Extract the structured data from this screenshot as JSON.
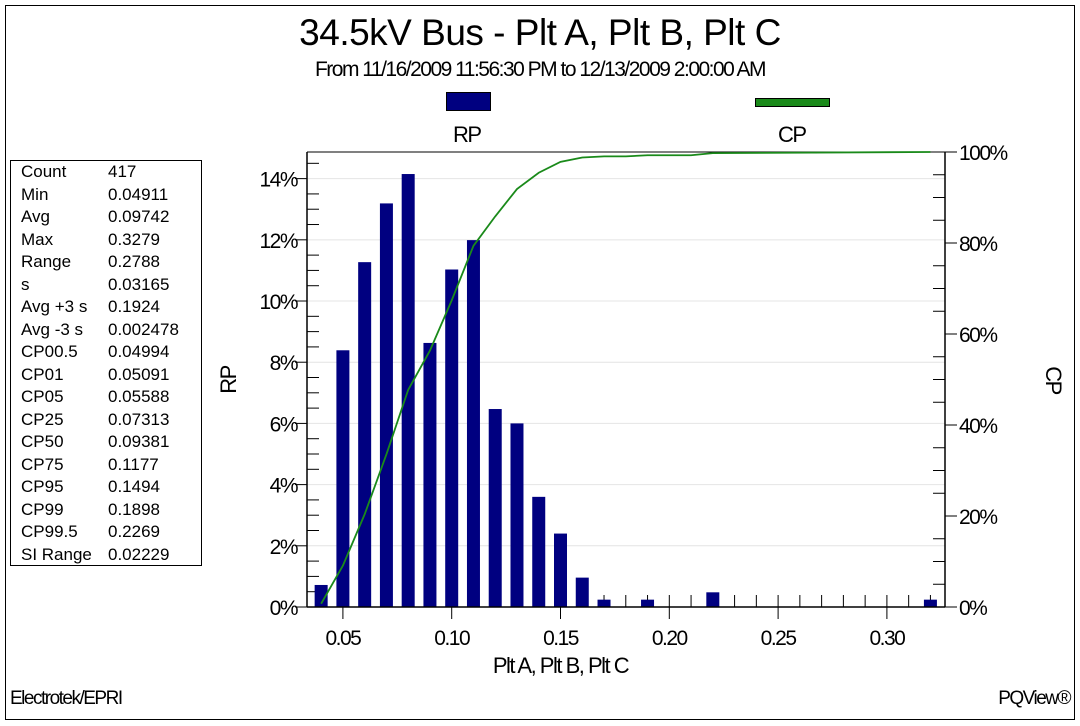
{
  "chart_data": {
    "type": "bar",
    "title": "34.5kV Bus - Plt A, Plt B, Plt C",
    "subtitle": "From 11/16/2009 11:56:30 PM to 12/13/2009 2:00:00 AM",
    "xlabel": "Plt A, Plt B, Plt C",
    "ylabel": "RP",
    "y2label": "CP",
    "xlim": [
      0.0335,
      0.3267
    ],
    "ylim": [
      0,
      14.87
    ],
    "y2lim": [
      0,
      100
    ],
    "x_ticks": [
      "0.05",
      "0.10",
      "0.15",
      "0.20",
      "0.25",
      "0.30"
    ],
    "y_ticks": [
      "0%",
      "2%",
      "4%",
      "6%",
      "8%",
      "10%",
      "12%",
      "14%"
    ],
    "y2_ticks": [
      "0%",
      "20%",
      "40%",
      "60%",
      "80%",
      "100%"
    ],
    "legend": [
      {
        "name": "RP",
        "color": "#000080"
      },
      {
        "name": "CP",
        "color": "#1a8a1a"
      }
    ],
    "legend_placement": "top",
    "grid": true,
    "series": [
      {
        "name": "RP",
        "type": "bar",
        "x": [
          0.04,
          0.05,
          0.06,
          0.07,
          0.08,
          0.09,
          0.1,
          0.11,
          0.12,
          0.13,
          0.14,
          0.15,
          0.16,
          0.17,
          0.19,
          0.22,
          0.32
        ],
        "values": [
          0.72,
          8.39,
          11.27,
          13.19,
          14.15,
          8.63,
          11.03,
          11.99,
          6.47,
          6.0,
          3.6,
          2.4,
          0.96,
          0.24,
          0.24,
          0.48,
          0.24
        ]
      },
      {
        "name": "CP",
        "type": "line",
        "x": [
          0.04,
          0.05,
          0.06,
          0.07,
          0.08,
          0.09,
          0.1,
          0.11,
          0.12,
          0.13,
          0.14,
          0.15,
          0.16,
          0.17,
          0.18,
          0.19,
          0.2,
          0.21,
          0.22,
          0.32
        ],
        "values": [
          0.72,
          9.11,
          20.38,
          33.57,
          47.72,
          56.35,
          67.39,
          79.38,
          85.85,
          91.85,
          95.44,
          97.84,
          98.8,
          99.04,
          99.04,
          99.28,
          99.28,
          99.28,
          99.76,
          100
        ]
      }
    ]
  },
  "stats": [
    [
      "Count",
      "417"
    ],
    [
      "Min",
      "0.04911"
    ],
    [
      "Avg",
      "0.09742"
    ],
    [
      "Max",
      "0.3279"
    ],
    [
      "Range",
      "0.2788"
    ],
    [
      "s",
      "0.03165"
    ],
    [
      "Avg +3 s",
      "0.1924"
    ],
    [
      "Avg -3 s",
      "0.002478"
    ],
    [
      "CP00.5",
      "0.04994"
    ],
    [
      "CP01",
      "0.05091"
    ],
    [
      "CP05",
      "0.05588"
    ],
    [
      "CP25",
      "0.07313"
    ],
    [
      "CP50",
      "0.09381"
    ],
    [
      "CP75",
      "0.1177"
    ],
    [
      "CP95",
      "0.1494"
    ],
    [
      "CP99",
      "0.1898"
    ],
    [
      "CP99.5",
      "0.2269"
    ],
    [
      "SI Range",
      "0.02229"
    ]
  ],
  "footer": {
    "left": "Electrotek/EPRI",
    "right": "PQView®"
  }
}
